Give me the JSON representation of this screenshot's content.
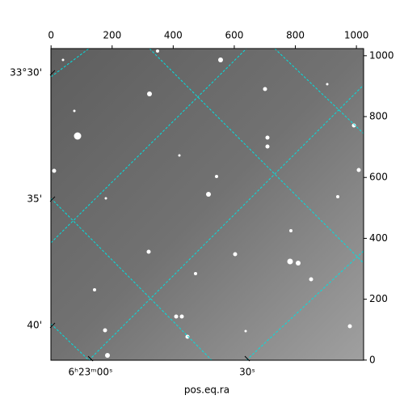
{
  "chart_data": {
    "type": "image",
    "x_label": "pos.eq.ra",
    "xlim": [
      -0.5,
      1023.5
    ],
    "xticks": [
      0,
      200,
      400,
      600,
      800,
      1000
    ],
    "ylim": [
      -0.5,
      1023.5
    ],
    "yticks": [
      0,
      200,
      400,
      600,
      800,
      1000
    ],
    "ra_lim": [
      -7.58,
      52.27
    ],
    "ra_ticks": [
      {
        "value": 0,
        "label": "6ʰ23ᵐ00ˢ"
      },
      {
        "value": 30,
        "label": "30ˢ"
      }
    ],
    "dec_lim": [
      41.38,
      29.04
    ],
    "dec_ticks": [
      {
        "value": 30,
        "label": "33°30'"
      },
      {
        "value": 35,
        "label": "35'"
      },
      {
        "value": 40,
        "label": "40'"
      }
    ],
    "grid": true,
    "grid_color": "#00e0e0"
  }
}
